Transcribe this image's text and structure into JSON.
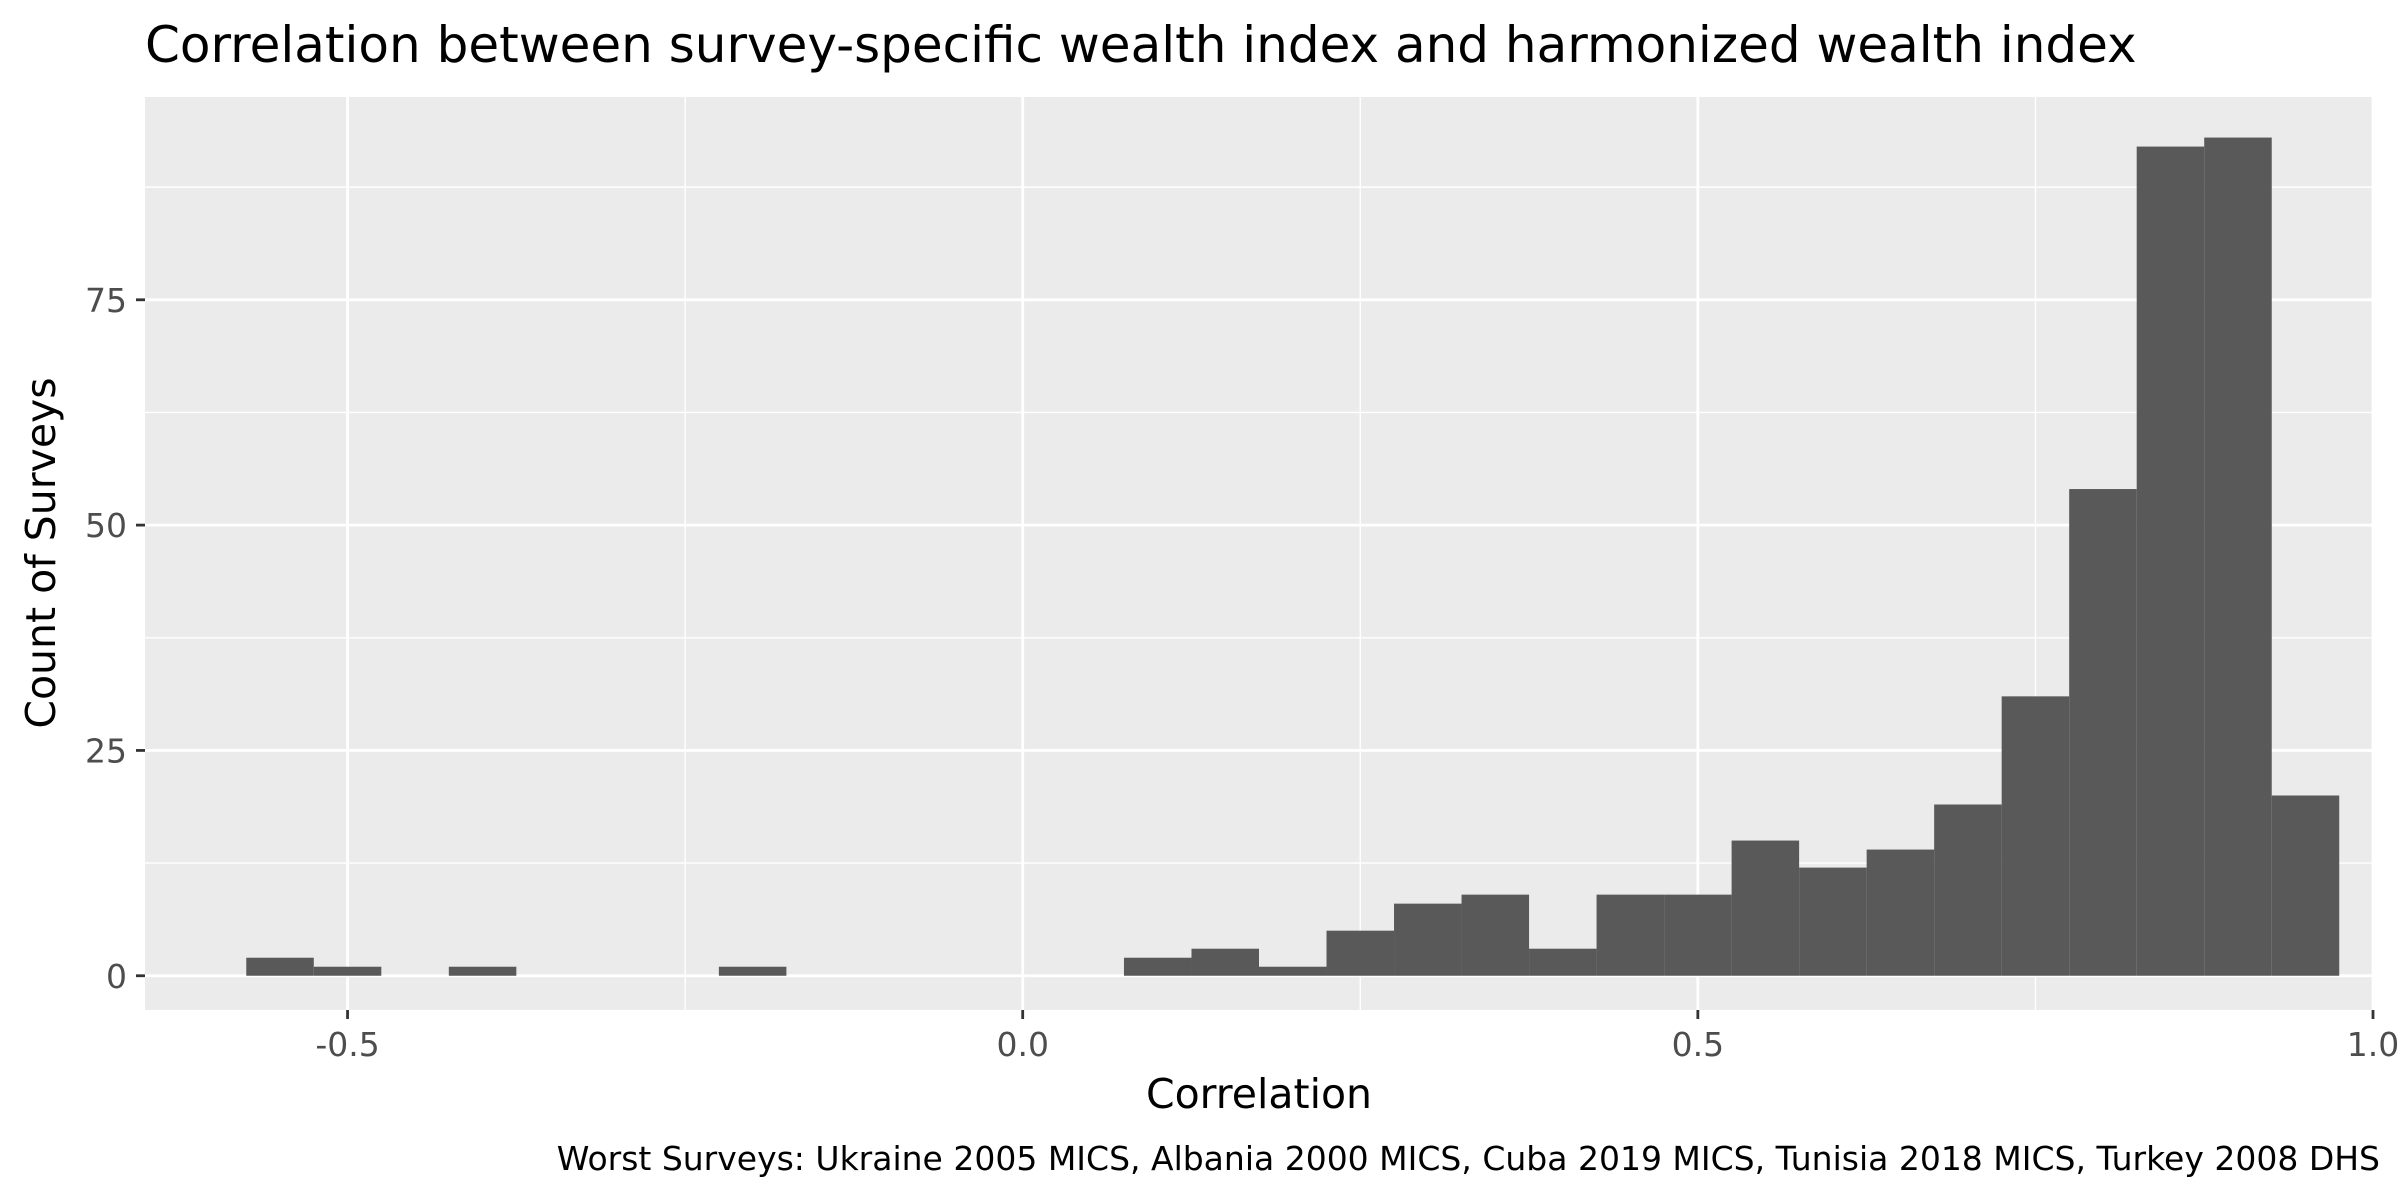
{
  "chart_data": {
    "type": "bar",
    "title": "Correlation between survey-specific wealth index and harmonized wealth index",
    "xlabel": "Correlation",
    "ylabel": "Count of Surveys",
    "caption": "Worst Surveys: Ukraine 2005 MICS, Albania 2000 MICS, Cuba 2019 MICS, Tunisia 2018 MICS, Turkey 2008 DHS",
    "xlim": [
      -0.65,
      1.0
    ],
    "ylim": [
      -3.8,
      97.5
    ],
    "x_ticks": [
      -0.5,
      0.0,
      0.5,
      1.0
    ],
    "x_tick_labels": [
      "-0.5",
      "0.0",
      "0.5",
      "1.0"
    ],
    "x_minor_ticks": [
      -0.25,
      0.25,
      0.75
    ],
    "y_ticks": [
      0,
      25,
      50,
      75
    ],
    "y_tick_labels": [
      "0",
      "25",
      "50",
      "75"
    ],
    "y_minor_ticks": [
      12.5,
      37.5,
      62.5,
      87.5
    ],
    "grid": true,
    "bin_width": 0.05,
    "bins": [
      {
        "x0": -0.575,
        "x1": -0.525,
        "count": 2
      },
      {
        "x0": -0.525,
        "x1": -0.475,
        "count": 1
      },
      {
        "x0": -0.425,
        "x1": -0.375,
        "count": 1
      },
      {
        "x0": -0.225,
        "x1": -0.175,
        "count": 1
      },
      {
        "x0": 0.075,
        "x1": 0.125,
        "count": 2
      },
      {
        "x0": 0.125,
        "x1": 0.175,
        "count": 3
      },
      {
        "x0": 0.175,
        "x1": 0.225,
        "count": 1
      },
      {
        "x0": 0.225,
        "x1": 0.275,
        "count": 5
      },
      {
        "x0": 0.275,
        "x1": 0.325,
        "count": 8
      },
      {
        "x0": 0.325,
        "x1": 0.375,
        "count": 9
      },
      {
        "x0": 0.375,
        "x1": 0.425,
        "count": 3
      },
      {
        "x0": 0.425,
        "x1": 0.475,
        "count": 9
      },
      {
        "x0": 0.475,
        "x1": 0.525,
        "count": 9
      },
      {
        "x0": 0.525,
        "x1": 0.575,
        "count": 15
      },
      {
        "x0": 0.575,
        "x1": 0.625,
        "count": 12
      },
      {
        "x0": 0.625,
        "x1": 0.675,
        "count": 14
      },
      {
        "x0": 0.675,
        "x1": 0.725,
        "count": 19
      },
      {
        "x0": 0.725,
        "x1": 0.775,
        "count": 31
      },
      {
        "x0": 0.775,
        "x1": 0.825,
        "count": 54
      },
      {
        "x0": 0.825,
        "x1": 0.875,
        "count": 92
      },
      {
        "x0": 0.875,
        "x1": 0.925,
        "count": 93
      },
      {
        "x0": 0.925,
        "x1": 0.975,
        "count": 20
      }
    ],
    "colors": {
      "bar": "#595959",
      "panel": "#ebebeb",
      "grid": "#ffffff",
      "tick_text": "#4d4d4d",
      "tick_mark": "#333333"
    }
  }
}
